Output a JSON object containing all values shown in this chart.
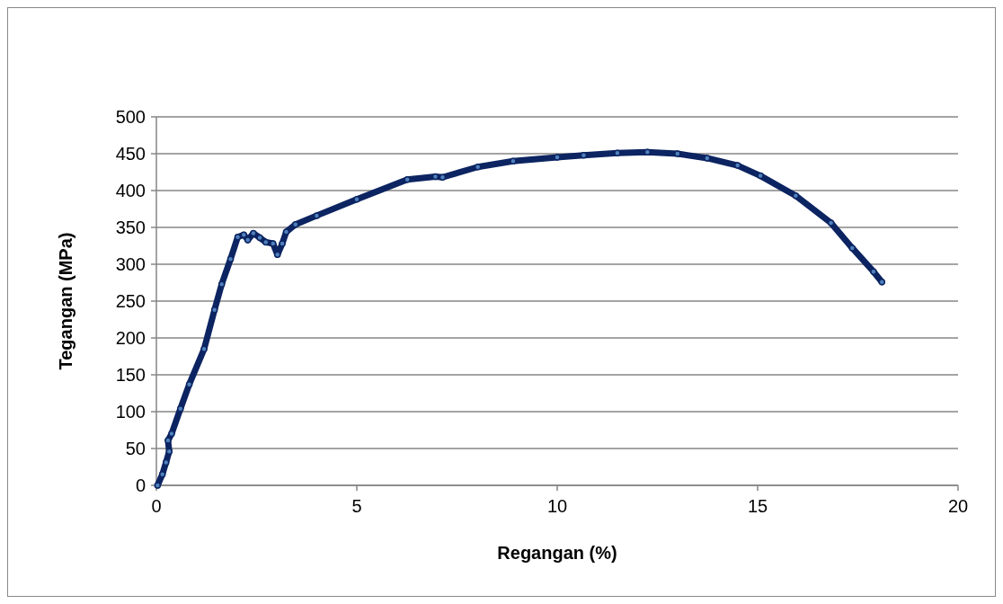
{
  "chart_data": {
    "type": "line",
    "xlabel": "Regangan (%)",
    "ylabel": "Tegangan (MPa)",
    "xlim": [
      0,
      20
    ],
    "xticks": [
      0,
      5,
      10,
      15,
      20
    ],
    "ylim": [
      0,
      500
    ],
    "yticks": [
      0,
      50,
      100,
      150,
      200,
      250,
      300,
      350,
      400,
      450,
      500
    ],
    "grid": "y",
    "marker": "circle",
    "line_style": "solid",
    "series": [
      {
        "color": "#0c2461",
        "x": [
          0.03,
          0.15,
          0.24,
          0.32,
          0.29,
          0.38,
          0.6,
          0.82,
          1.19,
          1.45,
          1.63,
          1.85,
          2.03,
          2.18,
          2.28,
          2.42,
          2.58,
          2.73,
          2.91,
          3.02,
          3.14,
          3.24,
          3.47,
          4,
          5,
          6.26,
          6.96,
          7.14,
          8.02,
          8.9,
          10,
          10.66,
          11.5,
          12.25,
          13,
          13.74,
          14.5,
          15.07,
          15.95,
          16.83,
          17.36,
          17.89,
          18.1
        ],
        "values": [
          0,
          15,
          31,
          46,
          61,
          70,
          104,
          137,
          185,
          238,
          273,
          307,
          337,
          340,
          333,
          342,
          336,
          330,
          328,
          313,
          328,
          344,
          354,
          366,
          388,
          415,
          419,
          418,
          432,
          440,
          445,
          448,
          451,
          452,
          450,
          444,
          434,
          420,
          393,
          356,
          322,
          290,
          276
        ]
      }
    ]
  }
}
